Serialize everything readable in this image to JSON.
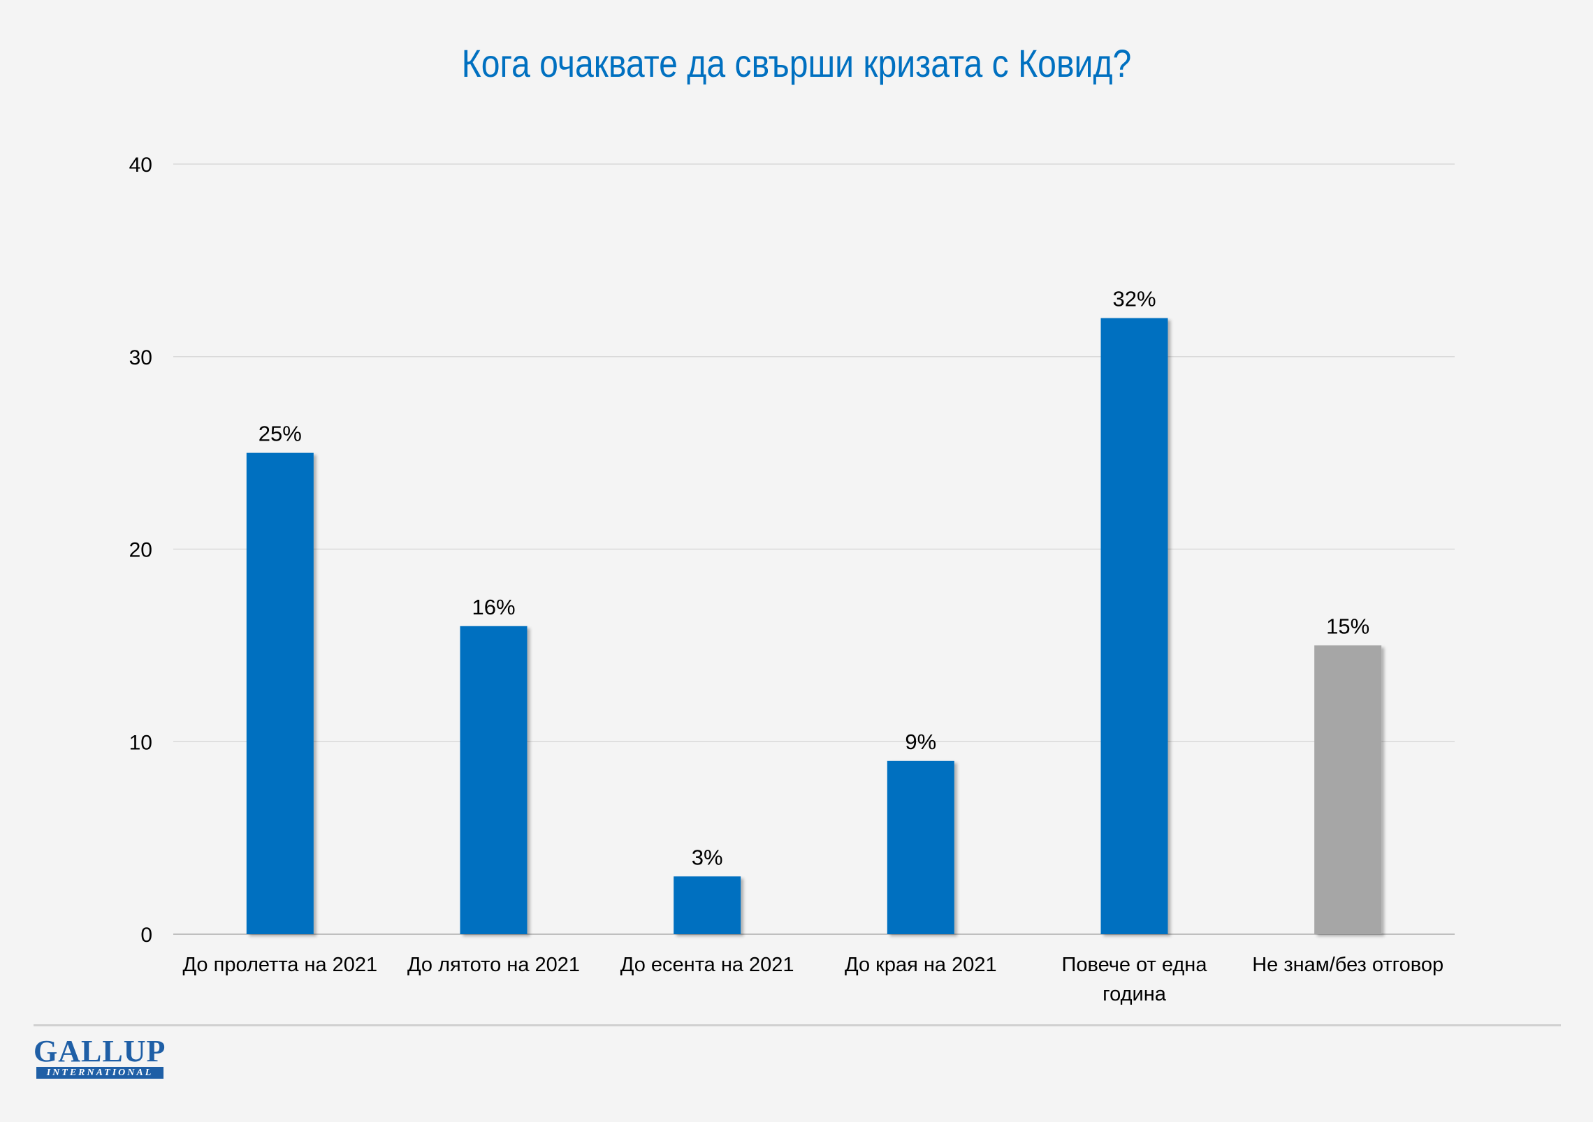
{
  "chart_data": {
    "type": "bar",
    "title": "Кога очаквате да свърши кризата с Ковид?",
    "categories": [
      [
        "До пролетта на 2021"
      ],
      [
        "До лятото на 2021"
      ],
      [
        "До есента на 2021"
      ],
      [
        "До края на 2021"
      ],
      [
        "Повече от една",
        "година"
      ],
      [
        "Не знам/без отговор"
      ]
    ],
    "values": [
      25,
      16,
      3,
      9,
      32,
      15
    ],
    "data_labels": [
      "25%",
      "16%",
      "3%",
      "9%",
      "32%",
      "15%"
    ],
    "bar_colors": [
      "#0070c0",
      "#0070c0",
      "#0070c0",
      "#0070c0",
      "#0070c0",
      "#a6a6a6"
    ],
    "yticks": [
      0,
      10,
      20,
      30,
      40
    ],
    "ylim": [
      0,
      40
    ],
    "grid": true,
    "legend": "none"
  },
  "logo": {
    "word": "GALLUP",
    "band": "INTERNATIONAL"
  }
}
